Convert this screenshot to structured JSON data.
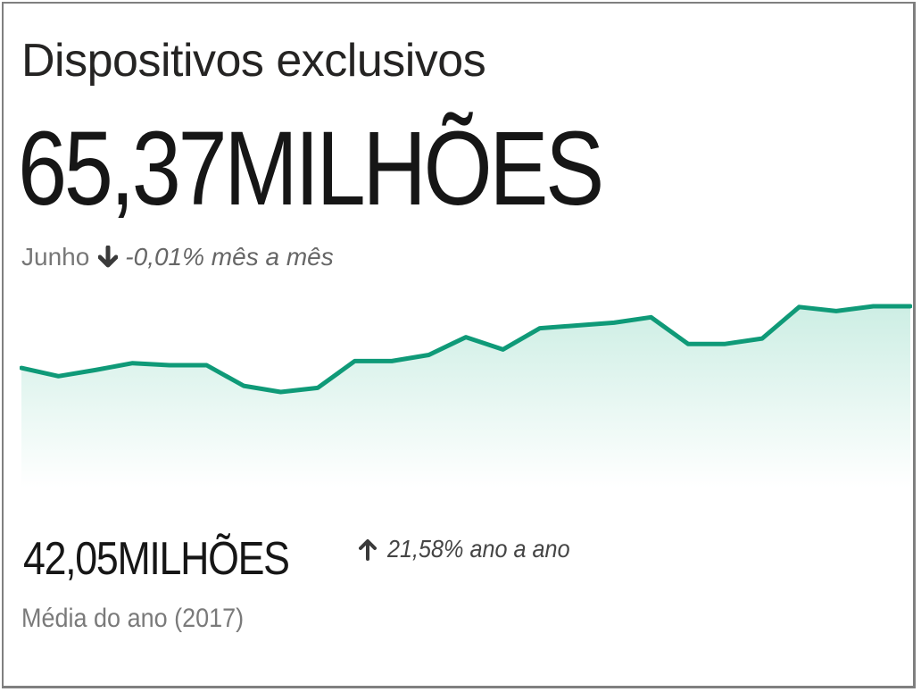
{
  "card": {
    "title": "Dispositivos exclusivos",
    "value": "65,37MILHÕES",
    "period": "Junho",
    "period_change": "-0,01% mês a mês",
    "period_change_direction": "down",
    "period_change_icon": "arrow-down-icon",
    "year_value": "42,05MILHÕES",
    "year_change": "21,58% ano a ano",
    "year_change_direction": "up",
    "year_change_icon": "arrow-up-icon",
    "year_label": "Média do ano (2017)"
  },
  "colors": {
    "line": "#0f9a78",
    "fill_top": "#cdeee4",
    "fill_bottom": "#ffffff",
    "text_dark": "#161616",
    "text_muted": "#777777",
    "border": "#7f7f7f"
  },
  "chart_data": {
    "type": "area",
    "title": "Dispositivos exclusivos",
    "xlabel": "",
    "ylabel": "",
    "grid": false,
    "legend": null,
    "series": [
      {
        "name": "Dispositivos exclusivos",
        "values": [
          58.2,
          57.0,
          57.9,
          58.9,
          58.6,
          58.6,
          55.6,
          54.7,
          55.3,
          59.2,
          59.2,
          60.1,
          62.7,
          60.9,
          64.0,
          64.4,
          64.8,
          65.6,
          61.7,
          61.7,
          62.5,
          67.1,
          66.5,
          67.2,
          67.2
        ]
      }
    ],
    "x": [
      1,
      2,
      3,
      4,
      5,
      6,
      7,
      8,
      9,
      10,
      11,
      12,
      13,
      14,
      15,
      16,
      17,
      18,
      19,
      20,
      21,
      22,
      23,
      24,
      25
    ],
    "ylim": [
      40,
      70
    ],
    "annotations": [
      "65,37MILHÕES",
      "Junho -0,01% mês a mês",
      "42,05MILHÕES 21,58% ano a ano",
      "Média do ano (2017)"
    ]
  }
}
